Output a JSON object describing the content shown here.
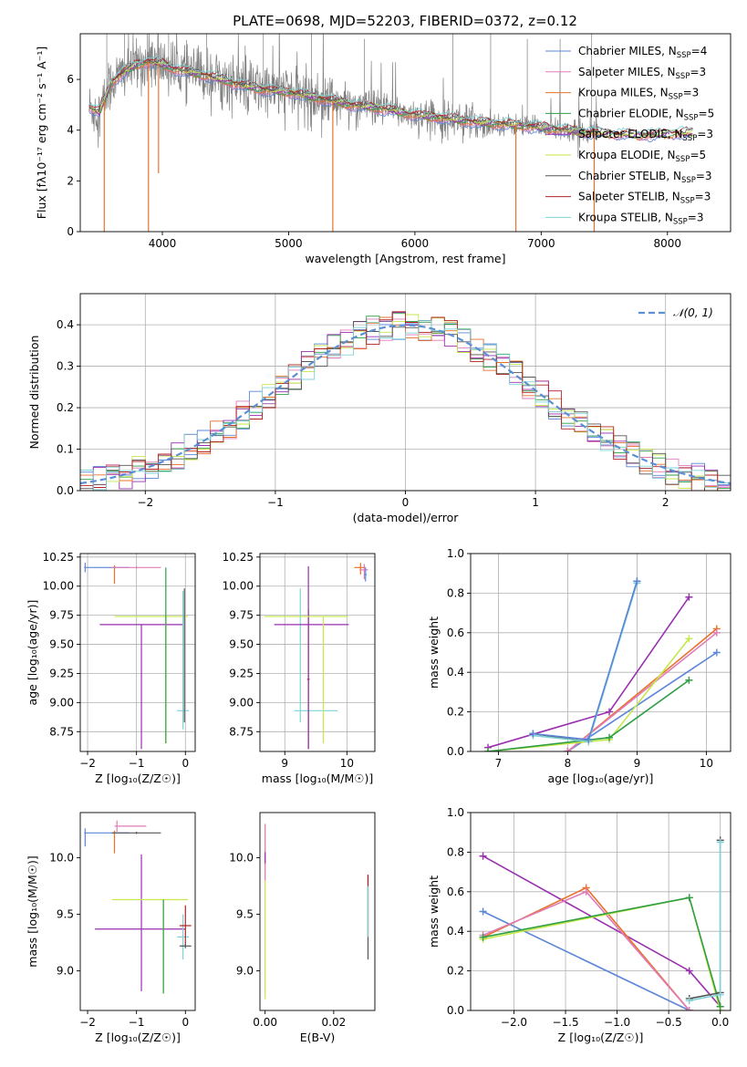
{
  "title": "PLATE=0698, MJD=52203, FIBERID=0372, z=0.12",
  "colors": {
    "chabrier_miles": "#5b86d8",
    "salpeter_miles": "#e07bb8",
    "kroupa_miles": "#e8722a",
    "chabrier_elodie": "#2f9e44",
    "salpeter_elodie": "#9a2fb0",
    "kroupa_elodie": "#c5e84a",
    "chabrier_stelib": "#555555",
    "salpeter_stelib": "#b22222",
    "kroupa_stelib": "#7fd3d8",
    "data": "#808080"
  },
  "chart_data": [
    {
      "id": "spectrum",
      "type": "line",
      "title": "PLATE=0698, MJD=52203, FIBERID=0372, z=0.12",
      "xlabel": "wavelength [Angstrom, rest frame]",
      "ylabel": "Flux [fλ10⁻¹⁷ erg cm⁻² s⁻¹ A⁻¹]",
      "xlim": [
        3350,
        8500
      ],
      "ylim": [
        0,
        7.8
      ],
      "xticks": [
        4000,
        5000,
        6000,
        7000,
        8000
      ],
      "yticks": [
        0,
        2,
        4,
        6
      ],
      "legend_position": "top-right",
      "legend": [
        {
          "label": "Chabrier MILES, N",
          "sub": "SSP",
          "suffix": "=4",
          "color": "#5b86d8"
        },
        {
          "label": "Salpeter MILES, N",
          "sub": "SSP",
          "suffix": "=3",
          "color": "#e07bb8"
        },
        {
          "label": "Kroupa MILES, N",
          "sub": "SSP",
          "suffix": "=3",
          "color": "#e8722a"
        },
        {
          "label": "Chabrier ELODIE, N",
          "sub": "SSP",
          "suffix": "=5",
          "color": "#2f9e44"
        },
        {
          "label": "Salpeter ELODIE, N",
          "sub": "SSP",
          "suffix": "=3",
          "color": "#9a2fb0"
        },
        {
          "label": "Kroupa ELODIE, N",
          "sub": "SSP",
          "suffix": "=5",
          "color": "#c5e84a"
        },
        {
          "label": "Chabrier STELIB, N",
          "sub": "SSP",
          "suffix": "=3",
          "color": "#555555"
        },
        {
          "label": "Salpeter STELIB, N",
          "sub": "SSP",
          "suffix": "=3",
          "color": "#b22222"
        },
        {
          "label": "Kroupa STELIB, N",
          "sub": "SSP",
          "suffix": "=3",
          "color": "#7fd3d8"
        }
      ],
      "model_curve": {
        "x": [
          3420,
          3500,
          3600,
          3700,
          3800,
          3900,
          4000,
          4100,
          4200,
          4400,
          4600,
          4800,
          5000,
          5200,
          5500,
          5800,
          6000,
          6200,
          6500,
          6800,
          7000,
          7200,
          7400,
          7800,
          8200
        ],
        "y": [
          4.9,
          4.7,
          5.9,
          6.3,
          6.6,
          6.7,
          6.6,
          6.4,
          6.3,
          6.1,
          5.8,
          5.6,
          5.5,
          5.3,
          5.0,
          4.8,
          4.6,
          4.5,
          4.3,
          4.2,
          4.1,
          4.0,
          3.9,
          3.8,
          3.9
        ]
      },
      "model_dips": [
        {
          "x": 3540,
          "y": 0.0
        },
        {
          "x": 3890,
          "y": 0.0
        },
        {
          "x": 3970,
          "y": 2.3
        },
        {
          "x": 5350,
          "y": 0.0
        },
        {
          "x": 6800,
          "y": 0.0
        },
        {
          "x": 7420,
          "y": 0.0
        }
      ]
    },
    {
      "id": "residuals",
      "type": "line",
      "xlabel": "(data-model)/error",
      "ylabel": "Normed distribution",
      "xlim": [
        -2.5,
        2.5
      ],
      "ylim": [
        0,
        0.475
      ],
      "xticks": [
        -2,
        -1,
        0,
        1,
        2
      ],
      "yticks": [
        0.0,
        0.1,
        0.2,
        0.3,
        0.4
      ],
      "grid": true,
      "legend_position": "top-right",
      "reference": {
        "label": "𝒩(0, 1)",
        "mean": 0,
        "sigma": 1,
        "color": "#5b8fd6"
      },
      "bin_width": 0.1,
      "hist_start": -2.5
    },
    {
      "id": "age_vs_Z",
      "type": "scatter",
      "xlabel": "Z [log₁₀(Z/Z☉)]",
      "ylabel": "age [log₁₀(age/yr)]",
      "xlim": [
        -2.15,
        0.2
      ],
      "ylim": [
        8.58,
        10.28
      ],
      "xticks": [
        -2,
        -1,
        0
      ],
      "yticks": [
        8.75,
        9.0,
        9.25,
        9.5,
        9.75,
        10.0,
        10.25
      ],
      "grid": true,
      "points": [
        {
          "x": -2.05,
          "y": 10.16,
          "xerr": [
            0.02,
            0.9
          ],
          "yerr": [
            0.04,
            0.04
          ],
          "color": "#5b86d8"
        },
        {
          "x": -1.45,
          "y": 10.16,
          "xerr": [
            0.02,
            0.02
          ],
          "yerr": [
            0.14,
            0.02
          ],
          "color": "#e8722a"
        },
        {
          "x": -1.0,
          "y": 10.16,
          "xerr": [
            0.5,
            0.5
          ],
          "yerr": [
            0.01,
            0.01
          ],
          "color": "#e07bb8"
        },
        {
          "x": -0.9,
          "y": 9.67,
          "xerr": [
            0.85,
            0.85
          ],
          "yerr": [
            1.07,
            0.0
          ],
          "color": "#9a2fb0"
        },
        {
          "x": -0.4,
          "y": 9.74,
          "xerr": [
            1.05,
            0.45
          ],
          "yerr": [
            1.09,
            0.0
          ],
          "color": "#c5e84a"
        },
        {
          "x": -0.4,
          "y": 9.74,
          "xerr": [
            0.0,
            0.0
          ],
          "yerr": [
            1.09,
            0.42
          ],
          "color": "#2f9e44"
        },
        {
          "x": -0.05,
          "y": 8.93,
          "xerr": [
            0.12,
            0.12
          ],
          "yerr": [
            0.16,
            1.03
          ],
          "color": "#7fd3d8"
        },
        {
          "x": -0.02,
          "y": 8.93,
          "xerr": [
            0.0,
            0.0
          ],
          "yerr": [
            0.1,
            1.05
          ],
          "color": "#555555"
        }
      ]
    },
    {
      "id": "age_vs_mass",
      "type": "scatter",
      "xlabel": "mass [log₁₀(M/M☉)]",
      "ylabel": "",
      "xlim": [
        8.6,
        10.45
      ],
      "ylim": [
        8.58,
        10.28
      ],
      "xticks": [
        9,
        10
      ],
      "yticks": [
        8.75,
        9.0,
        9.25,
        9.5,
        9.75,
        10.0,
        10.25
      ],
      "grid": true,
      "points": [
        {
          "x": 9.25,
          "y": 8.93,
          "xerr": [
            0.1,
            0.6
          ],
          "yerr": [
            0.1,
            1.05
          ],
          "color": "#7fd3d8"
        },
        {
          "x": 9.38,
          "y": 9.2,
          "xerr": [
            0.02,
            0.02
          ],
          "yerr": [
            0.6,
            0.6
          ],
          "color": "#b22222"
        },
        {
          "x": 9.38,
          "y": 9.67,
          "xerr": [
            0.55,
            0.65
          ],
          "yerr": [
            1.07,
            0.5
          ],
          "color": "#9a2fb0"
        },
        {
          "x": 9.62,
          "y": 9.74,
          "xerr": [
            0.95,
            0.4
          ],
          "yerr": [
            1.09,
            0.0
          ],
          "color": "#c5e84a"
        },
        {
          "x": 10.22,
          "y": 10.16,
          "xerr": [
            0.1,
            0.08
          ],
          "yerr": [
            0.06,
            0.04
          ],
          "color": "#e8722a"
        },
        {
          "x": 10.28,
          "y": 10.14,
          "xerr": [
            0.08,
            0.06
          ],
          "yerr": [
            0.08,
            0.05
          ],
          "color": "#e07bb8"
        },
        {
          "x": 10.3,
          "y": 10.1,
          "xerr": [
            0.02,
            0.02
          ],
          "yerr": [
            0.06,
            0.06
          ],
          "color": "#5b86d8"
        }
      ]
    },
    {
      "id": "weight_vs_age",
      "type": "line",
      "xlabel": "age [log₁₀(age/yr)]",
      "ylabel": "mass weight",
      "xlim": [
        6.6,
        10.35
      ],
      "ylim": [
        0,
        1.0
      ],
      "xticks": [
        7,
        8,
        9,
        10
      ],
      "yticks": [
        0.0,
        0.2,
        0.4,
        0.6,
        0.8,
        1.0
      ],
      "grid": true,
      "series": [
        {
          "color": "#5b86d8",
          "x": [
            8.0,
            10.15
          ],
          "y": [
            0.0,
            0.5
          ]
        },
        {
          "color": "#e8722a",
          "x": [
            8.0,
            10.15
          ],
          "y": [
            0.0,
            0.62
          ]
        },
        {
          "color": "#e07bb8",
          "x": [
            8.0,
            10.15
          ],
          "y": [
            0.0,
            0.6
          ]
        },
        {
          "color": "#9a2fb0",
          "x": [
            6.85,
            8.6,
            9.75
          ],
          "y": [
            0.02,
            0.2,
            0.78
          ]
        },
        {
          "color": "#c5e84a",
          "x": [
            6.85,
            8.6,
            9.75
          ],
          "y": [
            0.0,
            0.06,
            0.57
          ]
        },
        {
          "color": "#2f9e44",
          "x": [
            6.85,
            8.6,
            9.75
          ],
          "y": [
            0.0,
            0.07,
            0.36
          ]
        },
        {
          "color": "#555555",
          "x": [
            7.5,
            8.3,
            9.0
          ],
          "y": [
            0.09,
            0.05,
            0.86
          ]
        },
        {
          "color": "#7fd3d8",
          "x": [
            7.5,
            8.3,
            9.0
          ],
          "y": [
            0.08,
            0.05,
            0.85
          ]
        },
        {
          "color": "#5b86d8",
          "x": [
            7.5,
            8.3,
            9.0
          ],
          "y": [
            0.09,
            0.06,
            0.86
          ]
        }
      ]
    },
    {
      "id": "mass_vs_Z",
      "type": "scatter",
      "xlabel": "Z [log₁₀(Z/Z☉)]",
      "ylabel": "mass [log₁₀(M/M☉)]",
      "xlim": [
        -2.15,
        0.2
      ],
      "ylim": [
        8.65,
        10.4
      ],
      "xticks": [
        -2,
        -1,
        0
      ],
      "yticks": [
        9.0,
        9.5,
        10.0
      ],
      "grid": false,
      "points": [
        {
          "x": -2.05,
          "y": 10.22,
          "xerr": [
            0.02,
            0.9
          ],
          "yerr": [
            0.12,
            0.04
          ],
          "color": "#5b86d8"
        },
        {
          "x": -1.45,
          "y": 10.22,
          "xerr": [
            0.02,
            0.02
          ],
          "yerr": [
            0.18,
            0.02
          ],
          "color": "#e8722a"
        },
        {
          "x": -1.0,
          "y": 10.22,
          "xerr": [
            0.5,
            0.5
          ],
          "yerr": [
            0.01,
            0.01
          ],
          "color": "#555555"
        },
        {
          "x": -1.4,
          "y": 10.28,
          "xerr": [
            0.05,
            0.6
          ],
          "yerr": [
            0.05,
            0.05
          ],
          "color": "#e07bb8"
        },
        {
          "x": -0.9,
          "y": 9.37,
          "xerr": [
            0.95,
            0.9
          ],
          "yerr": [
            0.55,
            0.66
          ],
          "color": "#9a2fb0"
        },
        {
          "x": -0.45,
          "y": 9.63,
          "xerr": [
            1.05,
            0.5
          ],
          "yerr": [
            0.83,
            0.0
          ],
          "color": "#c5e84a"
        },
        {
          "x": -0.45,
          "y": 9.63,
          "xerr": [
            0.0,
            0.0
          ],
          "yerr": [
            0.83,
            0.0
          ],
          "color": "#2f9e44"
        },
        {
          "x": -0.05,
          "y": 9.3,
          "xerr": [
            0.12,
            0.12
          ],
          "yerr": [
            0.2,
            0.2
          ],
          "color": "#7fd3d8"
        },
        {
          "x": 0.0,
          "y": 9.4,
          "xerr": [
            0.12,
            0.12
          ],
          "yerr": [
            0.18,
            0.18
          ],
          "color": "#b22222"
        },
        {
          "x": 0.0,
          "y": 9.22,
          "xerr": [
            0.12,
            0.12
          ],
          "yerr": [
            0.02,
            0.02
          ],
          "color": "#555555"
        }
      ]
    },
    {
      "id": "mass_vs_ebv",
      "type": "scatter",
      "xlabel": "E(B-V)",
      "ylabel": "",
      "xlim": [
        -0.0015,
        0.032
      ],
      "ylim": [
        8.65,
        10.4
      ],
      "xticks": [
        0.0,
        0.02
      ],
      "yticks": [
        9.0,
        9.5,
        10.0
      ],
      "grid": false,
      "points": [
        {
          "x": 0.0,
          "y": 10.0,
          "xerr": [
            0.0,
            0.0
          ],
          "yerr": [
            1.25,
            0.3
          ],
          "color": "#c5e84a"
        },
        {
          "x": 0.0,
          "y": 10.0,
          "xerr": [
            0.0,
            0.0
          ],
          "yerr": [
            0.2,
            0.3
          ],
          "color": "#e07bb8"
        },
        {
          "x": 0.0,
          "y": 10.0,
          "xerr": [
            0.0,
            0.0
          ],
          "yerr": [
            0.05,
            0.05
          ],
          "color": "#9a2fb0"
        },
        {
          "x": 0.03,
          "y": 9.5,
          "xerr": [
            0.0,
            0.0
          ],
          "yerr": [
            0.4,
            0.35
          ],
          "color": "#555555"
        },
        {
          "x": 0.03,
          "y": 9.5,
          "xerr": [
            0.0,
            0.0
          ],
          "yerr": [
            0.2,
            0.35
          ],
          "color": "#b22222"
        },
        {
          "x": 0.03,
          "y": 9.5,
          "xerr": [
            0.0,
            0.0
          ],
          "yerr": [
            0.2,
            0.25
          ],
          "color": "#7fd3d8"
        }
      ]
    },
    {
      "id": "weight_vs_Z",
      "type": "line",
      "xlabel": "Z [log₁₀(Z/Z☉)]",
      "ylabel": "mass weight",
      "xlim": [
        -2.42,
        0.1
      ],
      "ylim": [
        0,
        1.0
      ],
      "xticks": [
        -2.0,
        -1.5,
        -1.0,
        -0.5,
        0.0
      ],
      "yticks": [
        0.0,
        0.2,
        0.4,
        0.6,
        0.8,
        1.0
      ],
      "grid": true,
      "series": [
        {
          "color": "#5b86d8",
          "x": [
            -2.3,
            -0.3
          ],
          "y": [
            0.5,
            0.0
          ]
        },
        {
          "color": "#9a2fb0",
          "x": [
            -2.3,
            -0.3,
            0.0
          ],
          "y": [
            0.78,
            0.2,
            0.02
          ]
        },
        {
          "color": "#e8722a",
          "x": [
            -2.3,
            -1.3,
            -0.3
          ],
          "y": [
            0.37,
            0.62,
            0.0
          ]
        },
        {
          "color": "#e07bb8",
          "x": [
            -2.3,
            -1.3,
            -0.3
          ],
          "y": [
            0.38,
            0.6,
            0.0
          ]
        },
        {
          "color": "#c5e84a",
          "x": [
            -2.3,
            -0.3,
            0.0
          ],
          "y": [
            0.36,
            0.57,
            0.0
          ]
        },
        {
          "color": "#2f9e44",
          "x": [
            -2.3,
            -0.3,
            0.0
          ],
          "y": [
            0.37,
            0.57,
            0.02
          ]
        },
        {
          "color": "#555555",
          "x": [
            -0.3,
            0.0,
            0.0
          ],
          "y": [
            0.06,
            0.09,
            0.86
          ]
        },
        {
          "color": "#7fd3d8",
          "x": [
            -0.3,
            0.0,
            0.0
          ],
          "y": [
            0.05,
            0.08,
            0.85
          ]
        }
      ]
    }
  ]
}
